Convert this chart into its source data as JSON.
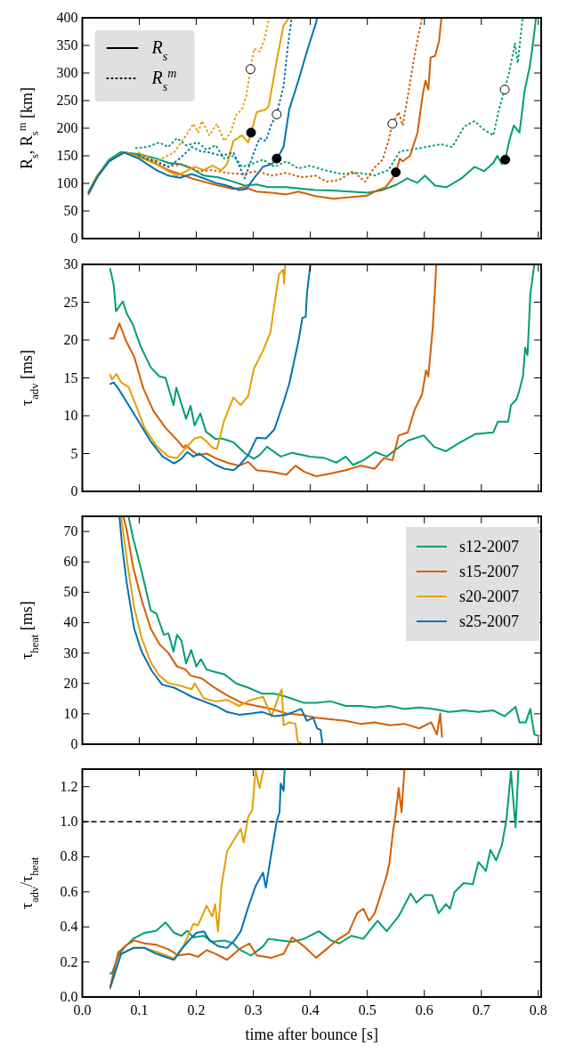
{
  "chart_data": [
    {
      "type": "line",
      "ylabel": "R$_{s}$, R$_{s}$$^{m}$ [km]",
      "xlim": [
        0,
        0.805
      ],
      "xticks": [
        0.1,
        0.2,
        0.3,
        0.4,
        0.5,
        0.6,
        0.7,
        0.8
      ],
      "ylim": [
        0,
        400
      ],
      "yticks": [
        0,
        50,
        100,
        150,
        200,
        250,
        300,
        350,
        400
      ],
      "tick_labels": "y",
      "annotations": [
        "R$_{s}$",
        "R$_{s}$$^{m}$"
      ],
      "series": [
        {
          "color": "#009e73",
          "line_style": "solid",
          "x": [
            0.011,
            0.026,
            0.047,
            0.068,
            0.099,
            0.13,
            0.151,
            0.171,
            0.192,
            0.213,
            0.239,
            0.265,
            0.285,
            0.306,
            0.326,
            0.358,
            0.389,
            0.409,
            0.44,
            0.47,
            0.5,
            0.527,
            0.552,
            0.57,
            0.588,
            0.601,
            0.619,
            0.639,
            0.665,
            0.688,
            0.705,
            0.721,
            0.728,
            0.736,
            0.742,
            0.749,
            0.757,
            0.767,
            0.776,
            0.785,
            0.79,
            0.796
          ],
          "values": [
            85,
            114,
            143,
            157,
            153,
            145,
            137,
            135,
            127,
            114,
            111,
            103,
            96,
            98,
            93,
            93,
            90,
            88,
            87,
            85,
            83,
            88,
            98,
            109,
            101,
            114,
            96,
            93,
            109,
            130,
            122,
            137,
            150,
            135,
            143,
            177,
            205,
            192,
            268,
            312,
            349,
            400
          ]
        },
        {
          "color": "#d55e00",
          "line_style": "solid",
          "x": [
            0.011,
            0.026,
            0.047,
            0.073,
            0.099,
            0.13,
            0.151,
            0.171,
            0.192,
            0.213,
            0.239,
            0.265,
            0.285,
            0.306,
            0.332,
            0.358,
            0.379,
            0.409,
            0.44,
            0.47,
            0.5,
            0.519,
            0.532,
            0.544,
            0.55,
            0.557,
            0.562,
            0.575,
            0.588,
            0.597,
            0.602,
            0.607,
            0.611,
            0.619,
            0.626,
            0.63
          ],
          "values": [
            80,
            111,
            140,
            156,
            150,
            135,
            124,
            117,
            109,
            103,
            96,
            90,
            93,
            85,
            83,
            80,
            85,
            77,
            72,
            75,
            78,
            88,
            93,
            109,
            120,
            145,
            140,
            150,
            192,
            260,
            286,
            270,
            328,
            331,
            359,
            400
          ]
        },
        {
          "color": "#e69f00",
          "line_style": "solid",
          "x": [
            0.011,
            0.026,
            0.047,
            0.073,
            0.099,
            0.13,
            0.151,
            0.166,
            0.182,
            0.197,
            0.213,
            0.228,
            0.244,
            0.254,
            0.265,
            0.28,
            0.291,
            0.296,
            0.306,
            0.322,
            0.327,
            0.342,
            0.353,
            0.363
          ],
          "values": [
            83,
            114,
            140,
            157,
            148,
            135,
            122,
            114,
            122,
            130,
            124,
            132,
            124,
            135,
            177,
            187,
            174,
            192,
            229,
            234,
            240,
            328,
            386,
            400
          ]
        },
        {
          "color": "#0072b2",
          "line_style": "solid",
          "x": [
            0.011,
            0.026,
            0.047,
            0.073,
            0.099,
            0.13,
            0.151,
            0.171,
            0.192,
            0.213,
            0.234,
            0.254,
            0.275,
            0.288,
            0.301,
            0.317,
            0.332,
            0.342,
            0.353,
            0.363,
            0.379,
            0.394,
            0.41,
            0.412
          ],
          "values": [
            83,
            111,
            140,
            156,
            145,
            124,
            114,
            110,
            117,
            109,
            101,
            96,
            88,
            90,
            109,
            130,
            135,
            145,
            166,
            234,
            286,
            339,
            391,
            400
          ]
        },
        {
          "color": "#009e73",
          "line_style": "dotted",
          "x": [
            0.094,
            0.114,
            0.135,
            0.151,
            0.166,
            0.182,
            0.203,
            0.218,
            0.234,
            0.249,
            0.265,
            0.28,
            0.296,
            0.317,
            0.337,
            0.358,
            0.379,
            0.399,
            0.425,
            0.455,
            0.486,
            0.511,
            0.537,
            0.557,
            0.578,
            0.603,
            0.629,
            0.649,
            0.67,
            0.688,
            0.705,
            0.721,
            0.731,
            0.741,
            0.749,
            0.759,
            0.764,
            0.771,
            0.773
          ],
          "values": [
            164,
            166,
            174,
            166,
            182,
            169,
            174,
            161,
            169,
            145,
            150,
            130,
            135,
            143,
            130,
            140,
            127,
            132,
            124,
            117,
            119,
            114,
            124,
            158,
            161,
            166,
            171,
            166,
            203,
            213,
            197,
            187,
            234,
            270,
            302,
            354,
            318,
            386,
            400
          ]
        },
        {
          "color": "#d55e00",
          "line_style": "dotted",
          "x": [
            0.099,
            0.13,
            0.151,
            0.176,
            0.203,
            0.228,
            0.254,
            0.28,
            0.306,
            0.332,
            0.358,
            0.384,
            0.409,
            0.429,
            0.45,
            0.475,
            0.496,
            0.511,
            0.527,
            0.537,
            0.544,
            0.555,
            0.562,
            0.573,
            0.583,
            0.593,
            0.596
          ],
          "values": [
            150,
            137,
            130,
            135,
            122,
            124,
            119,
            117,
            122,
            114,
            119,
            111,
            114,
            103,
            106,
            122,
            103,
            127,
            143,
            177,
            208,
            229,
            205,
            270,
            333,
            386,
            400
          ]
        },
        {
          "color": "#e69f00",
          "line_style": "dotted",
          "x": [
            0.099,
            0.13,
            0.161,
            0.182,
            0.195,
            0.203,
            0.21,
            0.223,
            0.236,
            0.249,
            0.26,
            0.27,
            0.28,
            0.288,
            0.295,
            0.301,
            0.311,
            0.319,
            0.327,
            0.328
          ],
          "values": [
            156,
            140,
            156,
            187,
            208,
            192,
            213,
            187,
            208,
            177,
            192,
            224,
            234,
            260,
            307,
            344,
            339,
            359,
            396,
            400
          ]
        },
        {
          "color": "#0072b2",
          "line_style": "dotted",
          "x": [
            0.099,
            0.13,
            0.151,
            0.171,
            0.192,
            0.208,
            0.223,
            0.244,
            0.265,
            0.285,
            0.301,
            0.311,
            0.322,
            0.332,
            0.341,
            0.353,
            0.36,
            0.366,
            0.367
          ],
          "values": [
            150,
            140,
            130,
            145,
            166,
            158,
            156,
            150,
            156,
            109,
            156,
            182,
            177,
            208,
            225,
            276,
            344,
            391,
            400
          ]
        },
        {
          "type": "scatter",
          "marker": "circle",
          "color": "#000000",
          "x": [
            0.296,
            0.341,
            0.55,
            0.742
          ],
          "values": [
            192,
            145,
            120,
            143
          ]
        },
        {
          "type": "scatter",
          "marker": "circle",
          "color": "#ffffff",
          "x": [
            0.295,
            0.341,
            0.544,
            0.741
          ],
          "values": [
            307,
            225,
            208,
            270
          ]
        }
      ]
    },
    {
      "type": "line",
      "ylabel": "τ$_{adv}$ [ms]",
      "xlim": [
        0,
        0.805
      ],
      "xticks": [
        0.1,
        0.2,
        0.3,
        0.4,
        0.5,
        0.6,
        0.7,
        0.8
      ],
      "ylim": [
        0,
        30
      ],
      "yticks": [
        0,
        5,
        10,
        15,
        20,
        25,
        30
      ],
      "tick_labels": "y",
      "series": [
        {
          "color": "#009e73",
          "x": [
            0.049,
            0.055,
            0.059,
            0.071,
            0.078,
            0.089,
            0.102,
            0.12,
            0.135,
            0.146,
            0.16,
            0.165,
            0.182,
            0.19,
            0.197,
            0.207,
            0.217,
            0.234,
            0.244,
            0.265,
            0.286,
            0.301,
            0.311,
            0.324,
            0.348,
            0.368,
            0.4,
            0.425,
            0.446,
            0.462,
            0.475,
            0.493,
            0.514,
            0.534,
            0.555,
            0.571,
            0.599,
            0.617,
            0.638,
            0.659,
            0.69,
            0.721,
            0.729,
            0.747,
            0.752,
            0.762,
            0.767,
            0.773,
            0.777,
            0.781,
            0.786,
            0.793
          ],
          "values": [
            29.4,
            27.3,
            23.8,
            25.1,
            23.5,
            22,
            19.2,
            16.4,
            15.2,
            15,
            11.4,
            13.7,
            9.6,
            11.3,
            8.7,
            10.3,
            7.9,
            6.9,
            7,
            6.5,
            5,
            4.3,
            4.8,
            5.9,
            4.6,
            5.1,
            4.6,
            4.4,
            3.8,
            4.6,
            3.5,
            4.1,
            5.2,
            4.6,
            5.8,
            6.7,
            7.4,
            5.9,
            5.3,
            6.3,
            7.6,
            7.8,
            9.2,
            9.2,
            11.4,
            12.2,
            13.4,
            15.2,
            19,
            18,
            26.1,
            30
          ]
        },
        {
          "color": "#d55e00",
          "x": [
            0.049,
            0.055,
            0.065,
            0.076,
            0.091,
            0.107,
            0.125,
            0.146,
            0.166,
            0.177,
            0.182,
            0.192,
            0.203,
            0.218,
            0.234,
            0.254,
            0.275,
            0.291,
            0.306,
            0.332,
            0.358,
            0.374,
            0.389,
            0.41,
            0.431,
            0.462,
            0.488,
            0.513,
            0.529,
            0.544,
            0.555,
            0.571,
            0.583,
            0.596,
            0.603,
            0.607,
            0.615,
            0.621
          ],
          "values": [
            20.2,
            20.2,
            22.2,
            20,
            17.8,
            13.6,
            10.6,
            8.4,
            6.8,
            5.8,
            6.1,
            5.4,
            4.8,
            5,
            4.4,
            3.8,
            3.4,
            3.9,
            2.8,
            2.6,
            2.2,
            3.4,
            2.6,
            2,
            2.3,
            2.8,
            3.4,
            3,
            4.4,
            4.1,
            7.4,
            7.8,
            10.8,
            12.8,
            16,
            15.2,
            21.8,
            30
          ]
        },
        {
          "color": "#e69f00",
          "x": [
            0.049,
            0.052,
            0.06,
            0.068,
            0.081,
            0.094,
            0.109,
            0.13,
            0.151,
            0.166,
            0.182,
            0.197,
            0.208,
            0.218,
            0.228,
            0.236,
            0.249,
            0.265,
            0.278,
            0.291,
            0.301,
            0.317,
            0.33,
            0.337,
            0.345,
            0.352,
            0.354,
            0.356
          ],
          "values": [
            15.4,
            14.8,
            15.5,
            14.4,
            13.8,
            11.4,
            8.4,
            6,
            4.6,
            4.4,
            5.8,
            7,
            7.2,
            6.6,
            5.8,
            5.6,
            9.4,
            12.4,
            11.4,
            12.6,
            16.2,
            18.6,
            21,
            24.7,
            28.7,
            29.3,
            27.5,
            30
          ]
        },
        {
          "color": "#0072b2",
          "x": [
            0.049,
            0.055,
            0.063,
            0.078,
            0.099,
            0.12,
            0.141,
            0.161,
            0.174,
            0.184,
            0.195,
            0.205,
            0.218,
            0.234,
            0.249,
            0.265,
            0.275,
            0.291,
            0.306,
            0.322,
            0.337,
            0.353,
            0.363,
            0.379,
            0.386,
            0.392,
            0.394,
            0.4
          ],
          "values": [
            14.2,
            14.4,
            13.6,
            11.8,
            9.2,
            6.6,
            4.6,
            3.7,
            4.3,
            5.2,
            4.6,
            5,
            4.3,
            3.5,
            3,
            2.8,
            3.4,
            4.8,
            7.1,
            7,
            8.2,
            11.8,
            14.2,
            19.8,
            22.9,
            23.1,
            26.1,
            30
          ]
        }
      ]
    },
    {
      "type": "line",
      "ylabel": "τ$_{heat}$ [ms]",
      "xlim": [
        0,
        0.805
      ],
      "xticks": [
        0.1,
        0.2,
        0.3,
        0.4,
        0.5,
        0.6,
        0.7,
        0.8
      ],
      "ylim": [
        0,
        75
      ],
      "yticks": [
        0,
        10,
        20,
        30,
        40,
        50,
        60,
        70
      ],
      "tick_labels": "y",
      "legend": "top right",
      "series": [
        {
          "name": "s12-2007",
          "color": "#009e73",
          "x": [
            0.081,
            0.089,
            0.104,
            0.12,
            0.13,
            0.143,
            0.151,
            0.16,
            0.166,
            0.174,
            0.182,
            0.191,
            0.2,
            0.208,
            0.218,
            0.228,
            0.249,
            0.27,
            0.291,
            0.316,
            0.337,
            0.358,
            0.389,
            0.41,
            0.436,
            0.462,
            0.488,
            0.513,
            0.539,
            0.565,
            0.591,
            0.617,
            0.643,
            0.669,
            0.695,
            0.721,
            0.741,
            0.76,
            0.767,
            0.778,
            0.786,
            0.793,
            0.801
          ],
          "values": [
            75,
            67.9,
            56.9,
            44,
            43,
            36,
            36.5,
            30.5,
            36,
            34,
            26.6,
            31,
            25.6,
            28,
            24.6,
            24,
            23,
            20,
            18.6,
            16.6,
            16.6,
            15.6,
            13.6,
            13.6,
            14.1,
            12.6,
            12.6,
            12.1,
            12.6,
            11.6,
            12.1,
            11.6,
            10.6,
            11.1,
            10.6,
            11.1,
            9.2,
            12.3,
            7.2,
            7.2,
            11.6,
            3.2,
            2.7
          ]
        },
        {
          "name": "s15-2007",
          "color": "#d55e00",
          "x": [
            0.072,
            0.078,
            0.089,
            0.104,
            0.12,
            0.135,
            0.151,
            0.166,
            0.181,
            0.19,
            0.21,
            0.228,
            0.254,
            0.28,
            0.306,
            0.332,
            0.358,
            0.384,
            0.41,
            0.436,
            0.462,
            0.488,
            0.513,
            0.539,
            0.565,
            0.591,
            0.612,
            0.622,
            0.628,
            0.631
          ],
          "values": [
            75,
            70.3,
            58.4,
            47.5,
            38,
            33,
            30,
            25.6,
            24.6,
            22.6,
            21.6,
            19.1,
            16.1,
            13.6,
            12.6,
            11.6,
            10.1,
            9.7,
            8.7,
            8.2,
            7.7,
            6.7,
            7.2,
            6.2,
            6.7,
            5.2,
            7.2,
            3.2,
            10.1,
            2.4
          ]
        },
        {
          "name": "s20-2007",
          "color": "#e69f00",
          "x": [
            0.068,
            0.073,
            0.081,
            0.091,
            0.104,
            0.12,
            0.135,
            0.151,
            0.171,
            0.192,
            0.197,
            0.213,
            0.234,
            0.254,
            0.275,
            0.296,
            0.317,
            0.332,
            0.345,
            0.35,
            0.353,
            0.363,
            0.374,
            0.378,
            0.384
          ],
          "values": [
            75,
            67.9,
            56.9,
            45,
            35,
            27,
            22.6,
            20.1,
            19.3,
            18.1,
            20.1,
            15.1,
            14.1,
            14.6,
            12.6,
            14.6,
            15.6,
            9.2,
            16.1,
            18.1,
            6.2,
            7.2,
            6.7,
            0.7,
            0.4
          ]
        },
        {
          "name": "s25-2007",
          "color": "#0072b2",
          "x": [
            0.065,
            0.07,
            0.078,
            0.091,
            0.104,
            0.122,
            0.14,
            0.161,
            0.177,
            0.192,
            0.213,
            0.234,
            0.254,
            0.275,
            0.296,
            0.316,
            0.337,
            0.358,
            0.384,
            0.394,
            0.405,
            0.412,
            0.418,
            0.421
          ],
          "values": [
            75,
            64.9,
            52.9,
            38,
            30.5,
            24.1,
            19.6,
            18.6,
            17.1,
            15.6,
            14.1,
            12.6,
            10.6,
            9.7,
            10.1,
            10.6,
            9.2,
            9.7,
            11.6,
            7.7,
            8.7,
            5.2,
            4.7,
            0.4
          ]
        }
      ]
    },
    {
      "type": "line",
      "ylabel": "τ$_{adv}$/τ$_{heat}$",
      "xlabel": "time after bounce [s]",
      "xlim": [
        0,
        0.805
      ],
      "xticks": [
        {
          "value": 0,
          "label": "0.0"
        },
        0.1,
        0.2,
        0.3,
        0.4,
        0.5,
        0.6,
        0.7,
        0.8
      ],
      "ylim": [
        0,
        1.3
      ],
      "yticks": [
        {
          "value": 0,
          "label": "0.0"
        },
        0.2,
        0.4,
        0.6,
        0.8,
        {
          "value": 1,
          "label": "1.0"
        },
        1.2
      ],
      "ref_lines": [
        {
          "axis": "y",
          "value": 1,
          "color": "#000000",
          "line_style": "dashed"
        }
      ],
      "series": [
        {
          "color": "#009e73",
          "x": [
            0.049,
            0.052,
            0.063,
            0.073,
            0.089,
            0.109,
            0.13,
            0.146,
            0.161,
            0.174,
            0.184,
            0.195,
            0.213,
            0.228,
            0.249,
            0.265,
            0.275,
            0.296,
            0.317,
            0.327,
            0.348,
            0.368,
            0.389,
            0.415,
            0.436,
            0.451,
            0.472,
            0.493,
            0.518,
            0.534,
            0.555,
            0.576,
            0.586,
            0.601,
            0.614,
            0.625,
            0.638,
            0.645,
            0.653,
            0.669,
            0.685,
            0.695,
            0.708,
            0.716,
            0.726,
            0.736,
            0.744,
            0.752,
            0.76,
            0.765
          ],
          "values": [
            0.134,
            0.134,
            0.237,
            0.28,
            0.332,
            0.366,
            0.378,
            0.426,
            0.366,
            0.349,
            0.378,
            0.34,
            0.349,
            0.315,
            0.323,
            0.306,
            0.272,
            0.237,
            0.289,
            0.332,
            0.323,
            0.315,
            0.332,
            0.375,
            0.323,
            0.306,
            0.349,
            0.332,
            0.435,
            0.375,
            0.461,
            0.59,
            0.538,
            0.581,
            0.581,
            0.478,
            0.53,
            0.504,
            0.598,
            0.65,
            0.643,
            0.77,
            0.719,
            0.839,
            0.779,
            0.865,
            1.011,
            1.286,
            0.968,
            1.295
          ]
        },
        {
          "color": "#d55e00",
          "x": [
            0.049,
            0.063,
            0.078,
            0.091,
            0.109,
            0.13,
            0.151,
            0.169,
            0.187,
            0.203,
            0.218,
            0.234,
            0.254,
            0.275,
            0.293,
            0.306,
            0.332,
            0.353,
            0.368,
            0.389,
            0.41,
            0.431,
            0.446,
            0.467,
            0.482,
            0.493,
            0.503,
            0.513,
            0.524,
            0.534,
            0.539,
            0.545,
            0.549,
            0.555,
            0.56,
            0.565
          ],
          "values": [
            0.057,
            0.255,
            0.298,
            0.323,
            0.306,
            0.298,
            0.272,
            0.237,
            0.246,
            0.229,
            0.268,
            0.246,
            0.212,
            0.272,
            0.306,
            0.237,
            0.224,
            0.246,
            0.34,
            0.289,
            0.224,
            0.28,
            0.323,
            0.366,
            0.478,
            0.504,
            0.435,
            0.478,
            0.59,
            0.693,
            0.77,
            0.942,
            1.028,
            1.192,
            1.054,
            1.295
          ]
        },
        {
          "color": "#e69f00",
          "x": [
            0.049,
            0.068,
            0.091,
            0.109,
            0.13,
            0.161,
            0.177,
            0.195,
            0.203,
            0.218,
            0.228,
            0.233,
            0.238,
            0.244,
            0.254,
            0.265,
            0.278,
            0.283,
            0.291,
            0.298,
            0.304,
            0.311,
            0.318
          ],
          "values": [
            0.048,
            0.246,
            0.28,
            0.28,
            0.258,
            0.22,
            0.289,
            0.418,
            0.409,
            0.521,
            0.46,
            0.53,
            0.375,
            0.633,
            0.831,
            0.891,
            0.96,
            0.882,
            1.028,
            1.066,
            1.295,
            1.192,
            1.3
          ]
        },
        {
          "color": "#0072b2",
          "x": [
            0.049,
            0.068,
            0.089,
            0.109,
            0.13,
            0.161,
            0.174,
            0.187,
            0.2,
            0.213,
            0.223,
            0.239,
            0.254,
            0.267,
            0.278,
            0.291,
            0.304,
            0.317,
            0.322,
            0.33,
            0.341,
            0.346,
            0.348,
            0.353,
            0.355
          ],
          "values": [
            0.057,
            0.246,
            0.28,
            0.28,
            0.246,
            0.212,
            0.272,
            0.323,
            0.366,
            0.375,
            0.323,
            0.289,
            0.28,
            0.323,
            0.375,
            0.512,
            0.633,
            0.71,
            0.624,
            0.788,
            1.003,
            1.054,
            1.218,
            1.175,
            1.3
          ]
        }
      ]
    }
  ]
}
